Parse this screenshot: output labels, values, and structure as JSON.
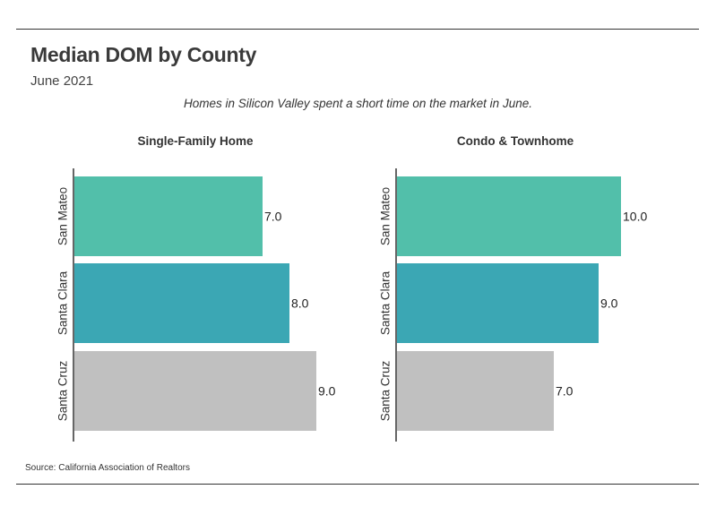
{
  "title": "Median DOM by County",
  "subtitle": "June 2021",
  "tagline": "Homes in Silicon Valley spent a short time on the market in June.",
  "source": "Source:  California Association of Realtors",
  "colors": {
    "San Mateo": "#52bfaa",
    "Santa Clara": "#3ba7b4",
    "Santa Cruz": "#c0c0c0"
  },
  "chart_data": [
    {
      "type": "bar",
      "orientation": "horizontal",
      "title": "Single-Family Home",
      "categories": [
        "San Mateo",
        "Santa Clara",
        "Santa Cruz"
      ],
      "values": [
        7.0,
        8.0,
        9.0
      ],
      "value_labels": [
        "7.0",
        "8.0",
        "9.0"
      ],
      "xlim": [
        0,
        9.0
      ],
      "grid": false
    },
    {
      "type": "bar",
      "orientation": "horizontal",
      "title": "Condo & Townhome",
      "categories": [
        "San Mateo",
        "Santa Clara",
        "Santa Cruz"
      ],
      "values": [
        10.0,
        9.0,
        7.0
      ],
      "value_labels": [
        "10.0",
        "9.0",
        "7.0"
      ],
      "xlim": [
        0,
        10.0
      ],
      "grid": false
    }
  ]
}
